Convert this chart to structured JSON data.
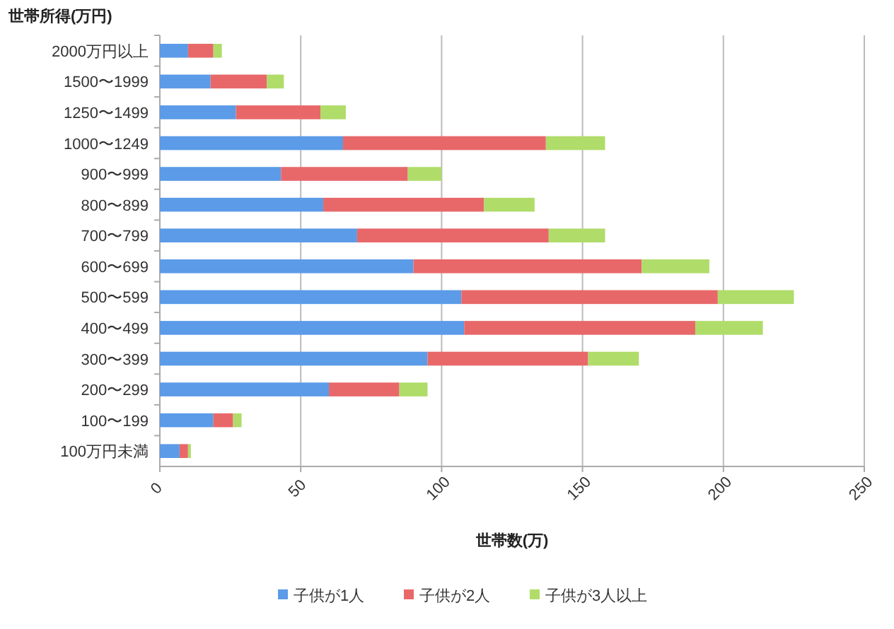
{
  "chart_data": {
    "type": "bar",
    "orientation": "horizontal",
    "stacked": true,
    "ylabel": "世帯所得(万円)",
    "xlabel": "世帯数(万)",
    "categories": [
      "2000万円以上",
      "1500〜1999",
      "1250〜1499",
      "1000〜1249",
      "900〜999",
      "800〜899",
      "700〜799",
      "600〜699",
      "500〜599",
      "400〜499",
      "300〜399",
      "200〜299",
      "100〜199",
      "100万円未満"
    ],
    "series": [
      {
        "name": "子供が1人",
        "color": "#5b9be8",
        "values": [
          10,
          18,
          27,
          65,
          43,
          58,
          70,
          90,
          107,
          108,
          95,
          60,
          19,
          7
        ]
      },
      {
        "name": "子供が2人",
        "color": "#e8686a",
        "values": [
          9,
          20,
          30,
          72,
          45,
          57,
          68,
          81,
          91,
          82,
          57,
          25,
          7,
          3
        ]
      },
      {
        "name": "子供が3人以上",
        "color": "#b0dc6a",
        "values": [
          3,
          6,
          9,
          21,
          12,
          18,
          20,
          24,
          27,
          24,
          18,
          10,
          3,
          1
        ]
      }
    ],
    "xlim": [
      0,
      250
    ],
    "xticks": [
      0,
      50,
      100,
      150,
      200,
      250
    ],
    "grid": "x",
    "legend": "bottom"
  }
}
